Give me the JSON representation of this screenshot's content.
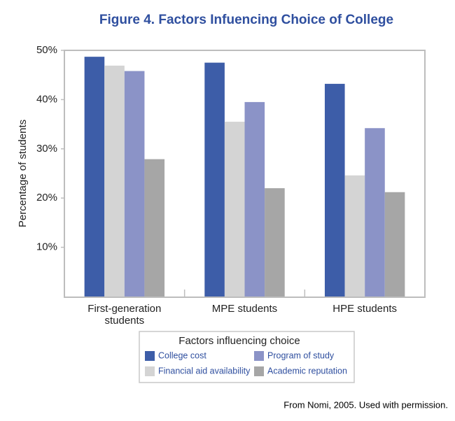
{
  "chart_data": {
    "type": "bar",
    "title": "Figure 4. Factors Infuencing Choice of College",
    "y_label": "Percentage of students",
    "categories": [
      "First-generation students",
      "MPE students",
      "HPE students"
    ],
    "series": [
      {
        "name": "College cost",
        "color": "#3d5da8",
        "values": [
          48.7,
          47.5,
          43.2
        ]
      },
      {
        "name": "Financial aid availability",
        "color": "#d4d4d4",
        "values": [
          46.9,
          35.5,
          24.6
        ]
      },
      {
        "name": "Program of study",
        "color": "#8b93c7",
        "values": [
          45.8,
          39.5,
          34.2
        ]
      },
      {
        "name": "Academic reputation",
        "color": "#a6a6a6",
        "values": [
          27.9,
          22.0,
          21.2
        ]
      }
    ],
    "ylim": [
      0,
      50
    ],
    "yticks": [
      {
        "value": 10,
        "label": "10%"
      },
      {
        "value": 20,
        "label": "20%"
      },
      {
        "value": 30,
        "label": "30%"
      },
      {
        "value": 40,
        "label": "40%"
      },
      {
        "value": 50,
        "label": "50%"
      }
    ],
    "legend_title": "Factors influencing choice",
    "source": "From Nomi, 2005. Used with permission."
  }
}
